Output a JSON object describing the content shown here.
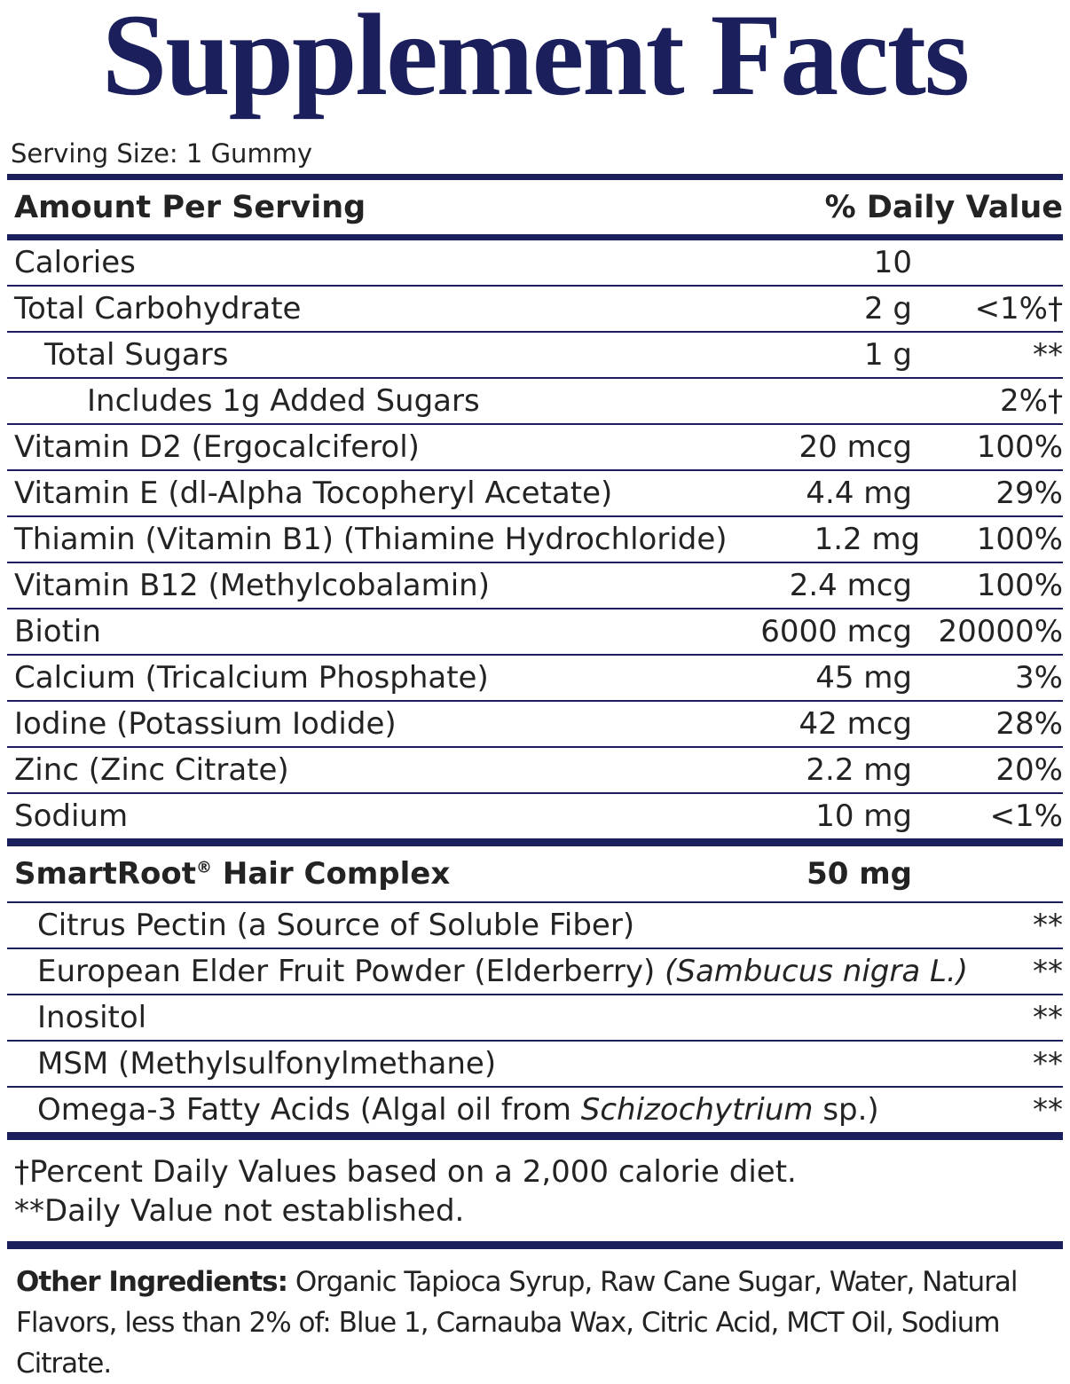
{
  "title": "Supplement Facts",
  "serving_size": "Serving Size: 1 Gummy",
  "header": {
    "amount": "Amount Per Serving",
    "daily_value": "% Daily Value"
  },
  "rows": [
    {
      "name": "Calories",
      "amount": "10"
    },
    {
      "name": "Total Carbohydrate",
      "amount": "2 g",
      "dv": "<1%†"
    },
    {
      "name": "Total Sugars",
      "amount": "1 g",
      "dv": "**"
    },
    {
      "name": "Includes 1g Added Sugars",
      "dv": "2%†"
    },
    {
      "name": "Vitamin D2 (Ergocalciferol)",
      "amount": "20 mcg",
      "dv": "100%"
    },
    {
      "name": "Vitamin E (dl-Alpha Tocopheryl Acetate)",
      "amount": "4.4 mg",
      "dv": "29%"
    },
    {
      "name": "Thiamin (Vitamin B1) (Thiamine Hydrochloride)",
      "amount": "1.2 mg",
      "dv": "100%"
    },
    {
      "name": "Vitamin B12 (Methylcobalamin)",
      "amount": "2.4 mcg",
      "dv": "100%"
    },
    {
      "name": "Biotin",
      "amount": "6000 mcg",
      "dv": "20000%"
    },
    {
      "name": "Calcium (Tricalcium Phosphate)",
      "amount": "45 mg",
      "dv": "3%"
    },
    {
      "name": "Iodine (Potassium Iodide)",
      "amount": "42 mcg",
      "dv": "28%"
    },
    {
      "name": "Zinc (Zinc Citrate)",
      "amount": "2.2 mg",
      "dv": "20%"
    },
    {
      "name": "Sodium",
      "amount": "10 mg",
      "dv": "<1%"
    }
  ],
  "complex": {
    "name": "SmartRoot",
    "mark": "®",
    "name_rest": "Hair Complex",
    "amount": "50 mg",
    "ingredients": [
      {
        "name": "Citrus Pectin (a Source of Soluble Fiber)",
        "dv": "**"
      },
      {
        "name": "European Elder Fruit Powder (Elderberry)",
        "italic": "(Sambucus nigra L.)",
        "dv": "**"
      },
      {
        "name": "Inositol",
        "dv": "**"
      },
      {
        "name": "MSM (Methylsulfonylmethane)",
        "dv": "**"
      },
      {
        "name": "Omega-3 Fatty Acids (Algal oil from",
        "italic": "Schizochytrium",
        "rest": "sp.)",
        "dv": "**"
      }
    ]
  },
  "footnotes": [
    "†Percent Daily Values based on a 2,000 calorie diet.",
    "**Daily Value not established."
  ],
  "other_ingredients": {
    "label": "Other Ingredients:",
    "text": "Organic Tapioca Syrup, Raw Cane Sugar, Water, Natural Flavors, less than 2% of: Blue 1, Carnauba Wax, Citric Acid, MCT Oil, Sodium Citrate."
  }
}
